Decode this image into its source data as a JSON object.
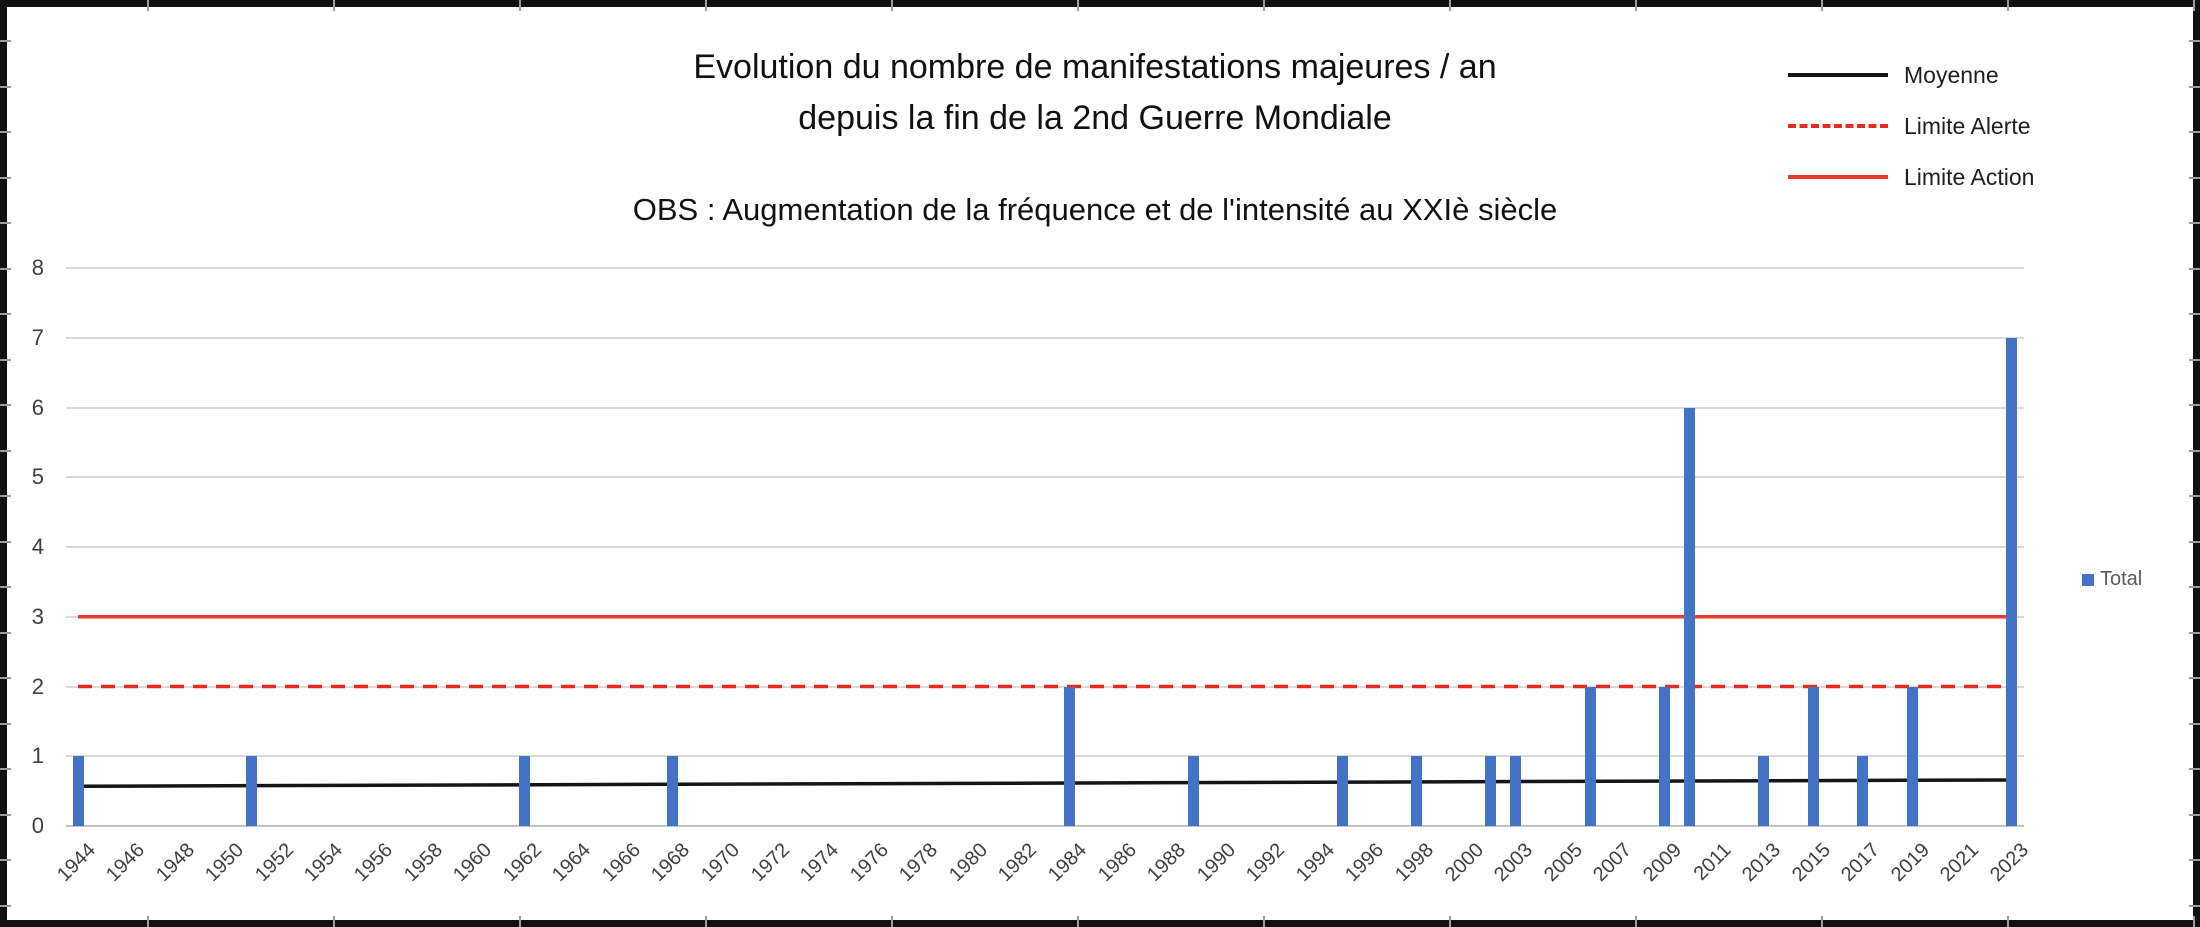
{
  "title": {
    "line1": "Evolution du nombre de manifestations majeures / an",
    "line2": "depuis la fin de la 2nd Guerre Mondiale"
  },
  "subtitle": "OBS : Augmentation de la fréquence et de l'intensité au XXIè siècle",
  "legend": {
    "items": [
      {
        "label": "Moyenne",
        "style": "solid",
        "color": "#151515"
      },
      {
        "label": "Limite Alerte",
        "style": "dashed",
        "color": "#E62B1E"
      },
      {
        "label": "Limite Action",
        "style": "solid",
        "color": "#ED3B2B"
      }
    ]
  },
  "series_legend": {
    "label": "Total",
    "marker_color": "#4472C4"
  },
  "colors": {
    "bar": "#4472C4",
    "gridline": "#D9D9D9",
    "baseline": "#C2C2C2",
    "axis_text": "#3F3F3F",
    "title_text": "#111111",
    "moyenne_line": "#151515",
    "limite_alerte_line": "#E62B1E",
    "limite_action_line": "#ED3B2B"
  },
  "chart_data": {
    "type": "bar",
    "title": "Evolution du nombre de manifestations majeures / an depuis la fin de la 2nd Guerre Mondiale",
    "subtitle": "OBS : Augmentation de la fréquence et de l'intensité au XXIè siècle",
    "categories": [
      "1944",
      "1945",
      "1946",
      "1947",
      "1948",
      "1949",
      "1950",
      "1951",
      "1952",
      "1953",
      "1954",
      "1955",
      "1956",
      "1957",
      "1958",
      "1959",
      "1960",
      "1961",
      "1962",
      "1963",
      "1964",
      "1965",
      "1966",
      "1967",
      "1968",
      "1969",
      "1970",
      "1971",
      "1972",
      "1973",
      "1974",
      "1975",
      "1976",
      "1977",
      "1978",
      "1979",
      "1980",
      "1981",
      "1982",
      "1983",
      "1984",
      "1985",
      "1986",
      "1987",
      "1988",
      "1989",
      "1990",
      "1991",
      "1992",
      "1993",
      "1994",
      "1995",
      "1996",
      "1997",
      "1998",
      "1999",
      "2000",
      "2001",
      "2003",
      "2004",
      "2005",
      "2006",
      "2007",
      "2008",
      "2009",
      "2010",
      "2011",
      "2012",
      "2013",
      "2014",
      "2015",
      "2016",
      "2017",
      "2018",
      "2019",
      "2020",
      "2021",
      "2022",
      "2023"
    ],
    "series": [
      {
        "name": "Total",
        "color": "#4472C4",
        "values": [
          1,
          0,
          0,
          0,
          0,
          0,
          0,
          1,
          0,
          0,
          0,
          0,
          0,
          0,
          0,
          0,
          0,
          0,
          1,
          0,
          0,
          0,
          0,
          0,
          1,
          0,
          0,
          0,
          0,
          0,
          0,
          0,
          0,
          0,
          0,
          0,
          0,
          0,
          0,
          0,
          2,
          0,
          0,
          0,
          0,
          1,
          0,
          0,
          0,
          0,
          0,
          1,
          0,
          0,
          1,
          0,
          0,
          1,
          1,
          0,
          0,
          2,
          0,
          0,
          2,
          6,
          0,
          0,
          1,
          0,
          2,
          0,
          1,
          0,
          2,
          0,
          0,
          0,
          7
        ]
      }
    ],
    "x_tick_label_every": 2,
    "x_tick_labels": [
      "1944",
      "1946",
      "1948",
      "1950",
      "1952",
      "1954",
      "1956",
      "1958",
      "1960",
      "1962",
      "1964",
      "1966",
      "1968",
      "1970",
      "1972",
      "1974",
      "1976",
      "1978",
      "1980",
      "1982",
      "1984",
      "1986",
      "1988",
      "1990",
      "1992",
      "1994",
      "1996",
      "1998",
      "2000",
      "2003",
      "2005",
      "2007",
      "2009",
      "2011",
      "2013",
      "2015",
      "2017",
      "2019",
      "2021",
      "2023"
    ],
    "ylim": [
      0,
      8
    ],
    "yticks": [
      0,
      1,
      2,
      3,
      4,
      5,
      6,
      7,
      8
    ],
    "grid": "horizontal",
    "legend_position": "top-right",
    "overlays": {
      "moyenne": {
        "type": "trend-line",
        "color": "#151515",
        "start_value": 0.57,
        "end_value": 0.66
      },
      "limite_alerte": {
        "type": "hline",
        "value": 2,
        "line_style": "dashed",
        "color": "#E62B1E"
      },
      "limite_action": {
        "type": "hline",
        "value": 3,
        "line_style": "solid",
        "color": "#ED3B2B"
      }
    }
  }
}
